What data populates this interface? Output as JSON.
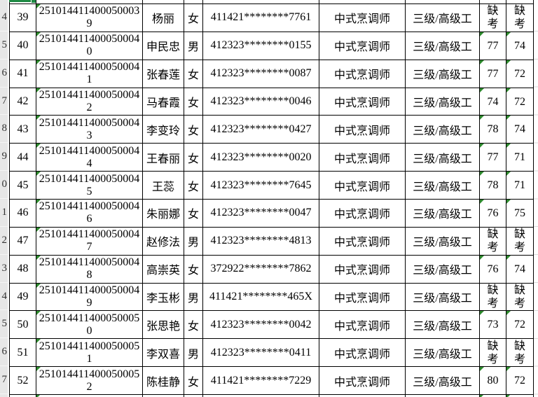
{
  "colors": {
    "border": "#000000",
    "row_header_bg": "#e7e7e7",
    "selection_green": "#1f8a44",
    "triangle_green": "#2e8b2e",
    "gridline": "#d9d9d9",
    "cell_bg": "#ffffff"
  },
  "row_header_partial_digits": [
    "4",
    "5",
    "6",
    "7",
    "8",
    "9",
    "0",
    "1",
    "2",
    "3",
    "4",
    "5",
    "6",
    "7"
  ],
  "table": {
    "absent_label": "缺考",
    "rows": [
      {
        "seq": "39",
        "exam_id": "2510144114000500039",
        "name": "杨丽",
        "gender": "女",
        "id_number": "411421********7761",
        "occupation": "中式烹调师",
        "level": "三级/高级工",
        "score1": "缺考",
        "score2": "缺考"
      },
      {
        "seq": "40",
        "exam_id": "2510144114000500040",
        "name": "申民忠",
        "gender": "男",
        "id_number": "412323********0155",
        "occupation": "中式烹调师",
        "level": "三级/高级工",
        "score1": "77",
        "score2": "74"
      },
      {
        "seq": "41",
        "exam_id": "2510144114000500041",
        "name": "张春莲",
        "gender": "女",
        "id_number": "412323********0087",
        "occupation": "中式烹调师",
        "level": "三级/高级工",
        "score1": "77",
        "score2": "72"
      },
      {
        "seq": "42",
        "exam_id": "2510144114000500042",
        "name": "马春霞",
        "gender": "女",
        "id_number": "412323********0046",
        "occupation": "中式烹调师",
        "level": "三级/高级工",
        "score1": "74",
        "score2": "72"
      },
      {
        "seq": "43",
        "exam_id": "2510144114000500043",
        "name": "李变玲",
        "gender": "女",
        "id_number": "412323********0427",
        "occupation": "中式烹调师",
        "level": "三级/高级工",
        "score1": "78",
        "score2": "74"
      },
      {
        "seq": "44",
        "exam_id": "2510144114000500044",
        "name": "王春丽",
        "gender": "女",
        "id_number": "412323********0020",
        "occupation": "中式烹调师",
        "level": "三级/高级工",
        "score1": "77",
        "score2": "71"
      },
      {
        "seq": "45",
        "exam_id": "2510144114000500045",
        "name": "王蕊",
        "gender": "女",
        "id_number": "412323********7645",
        "occupation": "中式烹调师",
        "level": "三级/高级工",
        "score1": "78",
        "score2": "71"
      },
      {
        "seq": "46",
        "exam_id": "2510144114000500046",
        "name": "朱丽娜",
        "gender": "女",
        "id_number": "412323********0047",
        "occupation": "中式烹调师",
        "level": "三级/高级工",
        "score1": "76",
        "score2": "75"
      },
      {
        "seq": "47",
        "exam_id": "2510144114000500047",
        "name": "赵修法",
        "gender": "男",
        "id_number": "412323********4813",
        "occupation": "中式烹调师",
        "level": "三级/高级工",
        "score1": "缺考",
        "score2": "缺考"
      },
      {
        "seq": "48",
        "exam_id": "2510144114000500048",
        "name": "高崇英",
        "gender": "女",
        "id_number": "372922********7862",
        "occupation": "中式烹调师",
        "level": "三级/高级工",
        "score1": "76",
        "score2": "74"
      },
      {
        "seq": "49",
        "exam_id": "2510144114000500049",
        "name": "李玉彬",
        "gender": "男",
        "id_number": "411421********465X",
        "occupation": "中式烹调师",
        "level": "三级/高级工",
        "score1": "缺考",
        "score2": "缺考"
      },
      {
        "seq": "50",
        "exam_id": "2510144114000500050",
        "name": "张思艳",
        "gender": "女",
        "id_number": "412323********0042",
        "occupation": "中式烹调师",
        "level": "三级/高级工",
        "score1": "73",
        "score2": "72"
      },
      {
        "seq": "51",
        "exam_id": "2510144114000500051",
        "name": "李双喜",
        "gender": "男",
        "id_number": "412323********0411",
        "occupation": "中式烹调师",
        "level": "三级/高级工",
        "score1": "缺考",
        "score2": "缺考"
      },
      {
        "seq": "52",
        "exam_id": "2510144114000500052",
        "name": "陈桂静",
        "gender": "女",
        "id_number": "411421********7229",
        "occupation": "中式烹调师",
        "level": "三级/高级工",
        "score1": "80",
        "score2": "72"
      }
    ]
  }
}
